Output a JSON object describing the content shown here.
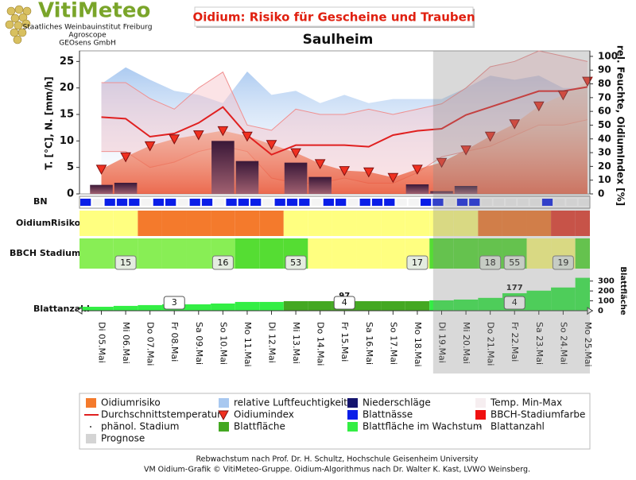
{
  "header": {
    "logo": "VitiMeteo",
    "lines": [
      "Staatliches Weinbauinstitut Freiburg",
      "Agroscope",
      "GEOsens GmbH"
    ]
  },
  "chart_data": {
    "type": "oidium",
    "title": "Oidium: Risiko für Gescheine und Trauben",
    "subtitle": "Saulheim",
    "ylabel": "T. [°C], N. [mm/h]",
    "y2label": "rel. Feuchte, OidiumIndex [%]",
    "categories": [
      "Di 05.Mai",
      "Mi 06.Mai",
      "Do 07.Mai",
      "Fr 08.Mai",
      "Sa 09.Mai",
      "So 10.Mai",
      "Mo 11.Mai",
      "Di 12.Mai",
      "Mi 13.Mai",
      "Do 14.Mai",
      "Fr 15.Mai",
      "Sa 16.Mai",
      "So 17.Mai",
      "Mo 18.Mai",
      "Di 19.Mai",
      "Mi 20.Mai",
      "Do 21.Mai",
      "Fr 22.Mai",
      "Sa 23.Mai",
      "So 24.Mai",
      "Mo 25.Mai"
    ],
    "forecast_from": "Di 19.Mai",
    "ylim": [
      0,
      27
    ],
    "yticks": [
      0,
      5,
      10,
      15,
      20,
      25
    ],
    "y2lim": [
      0,
      104
    ],
    "y2ticks": [
      0,
      10,
      20,
      30,
      40,
      50,
      60,
      70,
      80,
      90,
      100
    ],
    "humidity": {
      "color": "#a8c8f0",
      "values": [
        80,
        92,
        83,
        75,
        72,
        66,
        89,
        72,
        75,
        66,
        72,
        66,
        69,
        69,
        69,
        77,
        86,
        83,
        86,
        77,
        77
      ]
    },
    "temp_max": {
      "color": "#f09090",
      "values": [
        21,
        21,
        18,
        16,
        20,
        23,
        13,
        12,
        16,
        15,
        15,
        16,
        15,
        16,
        17,
        20,
        24,
        25,
        27,
        26,
        25
      ]
    },
    "temp_min": {
      "color": "#f09090",
      "values": [
        8,
        8,
        5,
        6,
        8,
        9,
        8,
        3,
        2,
        2,
        3,
        2,
        2,
        4,
        7,
        8,
        9,
        11,
        13,
        13,
        14
      ]
    },
    "mean_temp": {
      "color": "#e02020",
      "values": [
        14.5,
        14.2,
        10.8,
        11.4,
        13.4,
        16.4,
        11.1,
        7.4,
        9.2,
        9.2,
        9.2,
        8.9,
        11.1,
        11.9,
        12.3,
        14.9,
        16.4,
        17.9,
        19.4,
        19.4,
        20.2
      ]
    },
    "precipitation": {
      "color": "#4a2040",
      "values": [
        1.7,
        2.1,
        0,
        0,
        0,
        10,
        6.2,
        0,
        5.9,
        3.2,
        0,
        0,
        0,
        1.8,
        0.5,
        1.5,
        0,
        0,
        0,
        0,
        0
      ]
    },
    "oidium_index": {
      "color": "#f03020",
      "values": [
        18,
        27,
        35,
        40,
        43,
        46,
        42,
        36,
        30,
        22,
        17,
        16,
        12,
        18,
        23,
        32,
        42,
        51,
        64,
        72,
        82
      ]
    },
    "bn_label": "BN",
    "bn": {
      "color": "#0a1ee8",
      "values": [
        1,
        0,
        1,
        1,
        1,
        0,
        1,
        1,
        0,
        1,
        1,
        0,
        1,
        1,
        1,
        0,
        1,
        1,
        1,
        0,
        1,
        1,
        0,
        1,
        1,
        1,
        0,
        0,
        1,
        1,
        0,
        1,
        1,
        0,
        0,
        0,
        0,
        0,
        1,
        0,
        0,
        0
      ]
    },
    "risk_label": "OidiumRisiko",
    "risk": {
      "colors": [
        "#ffff80",
        "#f47a2c",
        "#e53a2a"
      ],
      "values": [
        0,
        0,
        1,
        1,
        1,
        1,
        1,
        1,
        0,
        0,
        0,
        0,
        0,
        0,
        0,
        0,
        1,
        1,
        1,
        2,
        2
      ]
    },
    "bbch_label": "BBCH Stadium",
    "bbch": {
      "colors": [
        "#88ee55",
        "#55dd33",
        "#ffff80"
      ],
      "values": [
        0,
        0,
        0,
        0,
        0,
        0,
        1,
        1,
        1,
        2,
        2,
        2,
        2,
        2,
        1,
        1,
        1,
        1,
        2,
        2,
        1
      ],
      "stages": [
        null,
        15,
        null,
        null,
        null,
        16,
        null,
        null,
        53,
        null,
        null,
        null,
        null,
        17,
        null,
        null,
        18,
        55,
        null,
        19,
        null
      ]
    },
    "leaf_label": "Blattanzahl",
    "leaf_axis_label": "Blattfläche",
    "leaf_ylim": [
      0,
      410
    ],
    "leaf_yticks": [
      0,
      100,
      200,
      300
    ],
    "leaf_area": {
      "color": "#44a822",
      "values": [
        null,
        null,
        null,
        null,
        null,
        null,
        null,
        null,
        97,
        97,
        97,
        97,
        97,
        97,
        null,
        null,
        null,
        null,
        null,
        null,
        null
      ]
    },
    "leaf_area_growing": {
      "color": "#33ee44",
      "values": [
        40,
        49,
        57,
        65,
        65,
        73,
        89,
        89,
        null,
        null,
        null,
        null,
        null,
        null,
        105,
        113,
        130,
        177,
        203,
        235,
        333
      ]
    },
    "leaf_area_labels": [
      null,
      null,
      null,
      null,
      null,
      null,
      null,
      null,
      null,
      null,
      97,
      null,
      null,
      null,
      null,
      null,
      null,
      177,
      null,
      null,
      null
    ],
    "leaf_count": [
      null,
      null,
      null,
      3,
      null,
      null,
      null,
      null,
      null,
      null,
      4,
      null,
      null,
      null,
      null,
      null,
      null,
      4,
      null,
      null,
      null
    ],
    "legend": [
      {
        "name": "Oidiumrisiko",
        "color": "#f47a2c",
        "symbol": "square"
      },
      {
        "name": "relative Luftfeuchtigkeit",
        "color": "#a8c8f0",
        "symbol": "square"
      },
      {
        "name": "Niederschläge",
        "color": "#14146e",
        "symbol": "square"
      },
      {
        "name": "Temp. Min-Max",
        "color": "#f6eef0",
        "symbol": "square"
      },
      {
        "name": "Durchschnittstemperatur",
        "color": "#e02020",
        "symbol": "line"
      },
      {
        "name": "Oidiumindex",
        "color": "#f03020",
        "symbol": "triangle"
      },
      {
        "name": "Blattnässe",
        "color": "#0a1ee8",
        "symbol": "square"
      },
      {
        "name": "BBCH-Stadiumfarbe",
        "color": "#f01010",
        "symbol": "square"
      },
      {
        "name": "phänol. Stadium",
        "color": "#333333",
        "symbol": "dot"
      },
      {
        "name": "Blattfläche",
        "color": "#44a822",
        "symbol": "square"
      },
      {
        "name": "Blattfläche im Wachstum",
        "color": "#33ee44",
        "symbol": "square"
      },
      {
        "name": "Blattanzahl",
        "color": "#333333",
        "symbol": "dot"
      },
      {
        "name": "Prognose",
        "color": "#d4d4d4",
        "symbol": "square"
      }
    ]
  },
  "footer": [
    "Rebwachstum nach Prof. Dr. H. Schultz, Hochschule Geisenheim University",
    "VM Oidium-Grafik © VitiMeteo-Gruppe. Oidium-Algorithmus nach Dr. Walter K. Kast, LVWO Weinsberg."
  ]
}
